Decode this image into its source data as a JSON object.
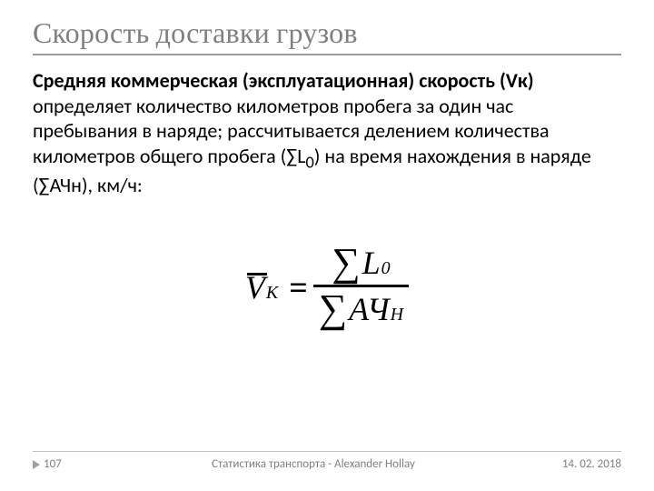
{
  "title": "Скорость доставки грузов",
  "body": {
    "bold_lead": "Средняя коммерческая (эксплуатационная) скорость (Vк)",
    "rest": " определяет количество километров пробега за один час пребывания в наряде; рассчитывается делением количества километров общего пробега (∑L",
    "sub1": "0",
    "after_sub": ") на время нахождения в наряде (∑АЧн), км/ч:"
  },
  "formula": {
    "lhs_main": "V",
    "lhs_sub": "К",
    "eq": "=",
    "sigma": "∑",
    "num_var": "L",
    "num_sub": "0",
    "den_var": "АЧ",
    "den_sub": "Н"
  },
  "footer": {
    "page": "107",
    "center": "Статистика транспорта - Alexander Hollay",
    "date": "14. 02. 2018"
  }
}
